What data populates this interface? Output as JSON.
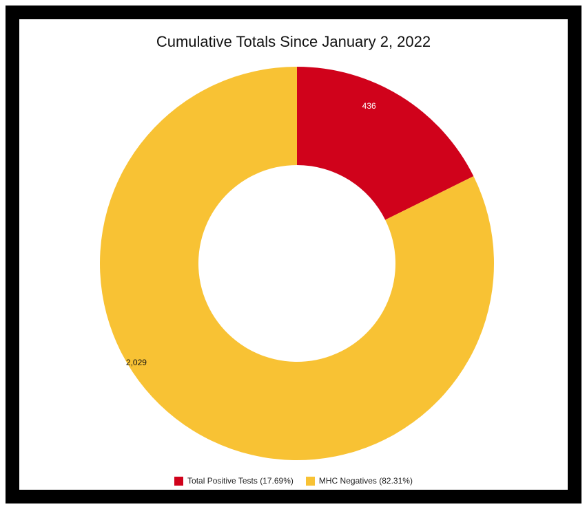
{
  "chart_data": {
    "type": "pie",
    "title": "Cumulative Totals Since January 2, 2022",
    "donut": true,
    "slices": [
      {
        "label": "Total Positive Tests (17.69%)",
        "value": 436,
        "value_label": "436",
        "percent": 17.69,
        "color": "#d0021b"
      },
      {
        "label": "MHC Negatives (82.31%)",
        "value": 2029,
        "value_label": "2,029",
        "percent": 82.31,
        "color": "#f8c234"
      }
    ],
    "legend_position": "bottom"
  }
}
